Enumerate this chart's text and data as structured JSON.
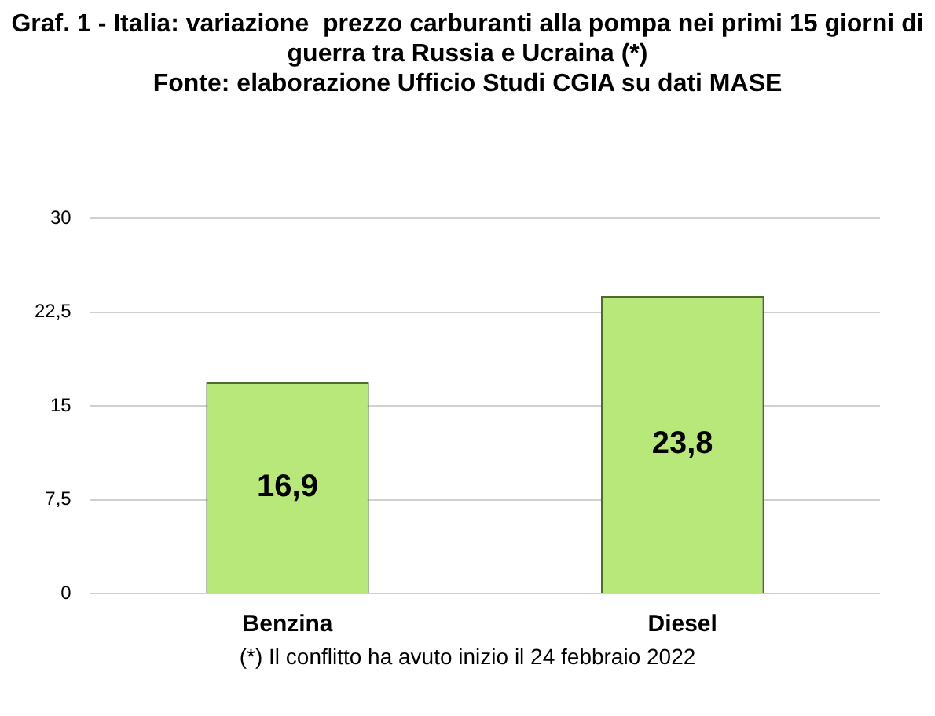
{
  "chart_data": {
    "type": "bar",
    "title": "Graf. 1 - Italia: variazione  prezzo carburanti alla pompa nei primi 15 giorni di guerra tra Russia e Ucraina (*)\nFonte: elaborazione Ufficio Studi CGIA su dati MASE",
    "categories": [
      "Benzina",
      "Diesel"
    ],
    "values": [
      16.9,
      23.8
    ],
    "value_labels": [
      "16,9",
      "23,8"
    ],
    "color": "#b8e87a",
    "ylim": [
      0,
      30
    ],
    "yticks": [
      0,
      {
        "value": 7.5,
        "label": "7,5"
      },
      15,
      {
        "value": 22.5,
        "label": "22,5"
      },
      30
    ],
    "grid": "y",
    "annotations": [
      "(*) Il conflitto ha avuto inizio il 24 febbraio 2022"
    ]
  }
}
